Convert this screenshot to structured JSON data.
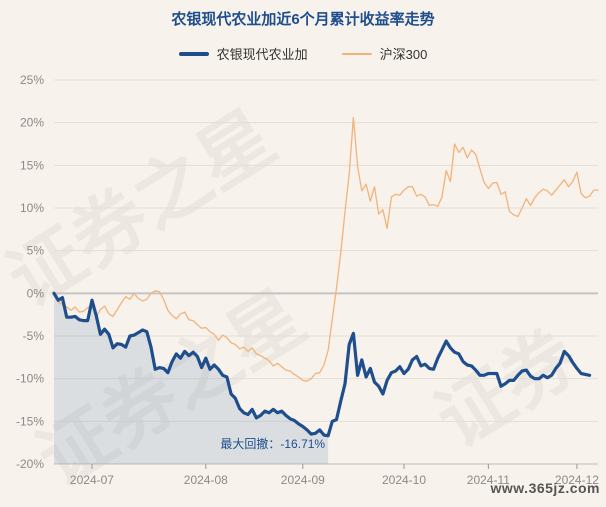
{
  "chart_data": {
    "type": "line",
    "title": "农银现代农业加近6个月累计收益率走势",
    "ylim": [
      -20,
      25
    ],
    "yticks": [
      25,
      20,
      15,
      10,
      5,
      0,
      -5,
      -10,
      -15,
      -20
    ],
    "ytick_labels": [
      "25%",
      "20%",
      "15%",
      "10%",
      "5%",
      "0%",
      "-5%",
      "-10%",
      "-15%",
      "-20%"
    ],
    "x_count": 130,
    "xticks": [
      {
        "idx": 9,
        "label": "2024-07"
      },
      {
        "idx": 36,
        "label": "2024-08"
      },
      {
        "idx": 59,
        "label": "2024-09"
      },
      {
        "idx": 83,
        "label": "2024-10"
      },
      {
        "idx": 103,
        "label": "2024-11"
      },
      {
        "idx": 124,
        "label": "2024-12"
      }
    ],
    "legend_position": "top-center",
    "grid": "horizontal",
    "series": [
      {
        "name": "农银现代农业加",
        "color": "#1f4e8c",
        "values": [
          0,
          -0.8,
          -0.5,
          -2.8,
          -2.8,
          -2.7,
          -3.1,
          -3.2,
          -3.2,
          -0.8,
          -2.6,
          -4.8,
          -4.2,
          -4.8,
          -6.4,
          -5.9,
          -6.0,
          -6.3,
          -5.0,
          -4.9,
          -4.6,
          -4.3,
          -4.5,
          -6.3,
          -8.9,
          -8.7,
          -8.8,
          -9.3,
          -8.0,
          -7.1,
          -7.6,
          -6.8,
          -7.3,
          -6.9,
          -7.4,
          -8.7,
          -7.6,
          -8.9,
          -8.4,
          -8.9,
          -9.6,
          -9.8,
          -11.8,
          -12.3,
          -13.5,
          -14.0,
          -14.2,
          -13.6,
          -14.6,
          -14.3,
          -13.8,
          -14.0,
          -13.6,
          -14.0,
          -13.8,
          -14.3,
          -14.7,
          -14.9,
          -15.3,
          -15.6,
          -16.0,
          -16.5,
          -16.4,
          -16.0,
          -16.6,
          -16.7,
          -15.0,
          -14.8,
          -12.6,
          -10.6,
          -6.0,
          -4.7,
          -9.6,
          -7.8,
          -9.8,
          -8.8,
          -10.4,
          -10.9,
          -11.8,
          -10.2,
          -9.3,
          -9.1,
          -8.6,
          -9.4,
          -8.9,
          -7.8,
          -7.4,
          -8.5,
          -8.3,
          -8.8,
          -8.9,
          -7.6,
          -6.6,
          -5.6,
          -6.4,
          -6.9,
          -7.1,
          -8.0,
          -8.4,
          -8.5,
          -9.0,
          -9.6,
          -9.6,
          -9.4,
          -9.4,
          -9.4,
          -10.9,
          -10.6,
          -10.2,
          -10.2,
          -9.6,
          -9.1,
          -9.0,
          -9.7,
          -10.0,
          -10.0,
          -9.6,
          -9.9,
          -9.6,
          -8.8,
          -8.2,
          -6.8,
          -7.3,
          -8.1,
          -8.8,
          -9.4,
          -9.5,
          -9.6
        ],
        "max_drawdown": {
          "start_idx": 0,
          "end_idx": 65,
          "label": "最大回撤：-16.71%"
        }
      },
      {
        "name": "沪深300",
        "color": "#f2b37b",
        "values": [
          0,
          -1.0,
          -1.3,
          -1.6,
          -2.0,
          -1.6,
          -2.2,
          -2.1,
          -1.7,
          -1.4,
          -2.8,
          -1.9,
          -1.5,
          -2.4,
          -2.7,
          -1.9,
          -1.1,
          -0.4,
          -0.7,
          0.0,
          -0.6,
          -0.9,
          -0.7,
          0.0,
          0.3,
          0.2,
          -0.7,
          -2.0,
          -2.6,
          -3.0,
          -2.4,
          -2.2,
          -3.1,
          -3.2,
          -3.7,
          -4.1,
          -4.0,
          -4.5,
          -4.8,
          -5.5,
          -4.9,
          -5.2,
          -5.8,
          -6.0,
          -6.5,
          -6.3,
          -6.8,
          -6.4,
          -7.1,
          -7.3,
          -7.6,
          -7.9,
          -8.5,
          -8.2,
          -8.6,
          -9.0,
          -9.1,
          -9.5,
          -9.8,
          -10.2,
          -10.3,
          -10.0,
          -9.4,
          -9.3,
          -8.4,
          -6.7,
          -3.0,
          0.6,
          4.8,
          9.6,
          14.0,
          20.6,
          14.9,
          12.0,
          12.8,
          10.8,
          12.5,
          9.3,
          9.8,
          7.6,
          11.3,
          11.6,
          11.5,
          12.1,
          12.5,
          12.5,
          11.4,
          11.6,
          11.3,
          10.3,
          10.4,
          10.2,
          11.3,
          14.4,
          13.1,
          17.5,
          16.5,
          17.1,
          15.9,
          16.8,
          16.3,
          14.6,
          13.0,
          12.3,
          12.9,
          13.0,
          11.6,
          11.9,
          9.6,
          9.2,
          9.0,
          10.0,
          11.1,
          10.3,
          11.2,
          11.8,
          12.2,
          12.0,
          11.5,
          12.1,
          12.7,
          13.3,
          12.5,
          13.1,
          14.2,
          11.7,
          11.2,
          11.4,
          12.1,
          12.1
        ]
      }
    ],
    "watermark_text": "证券之星",
    "site_mark": "www.365jz.com"
  }
}
